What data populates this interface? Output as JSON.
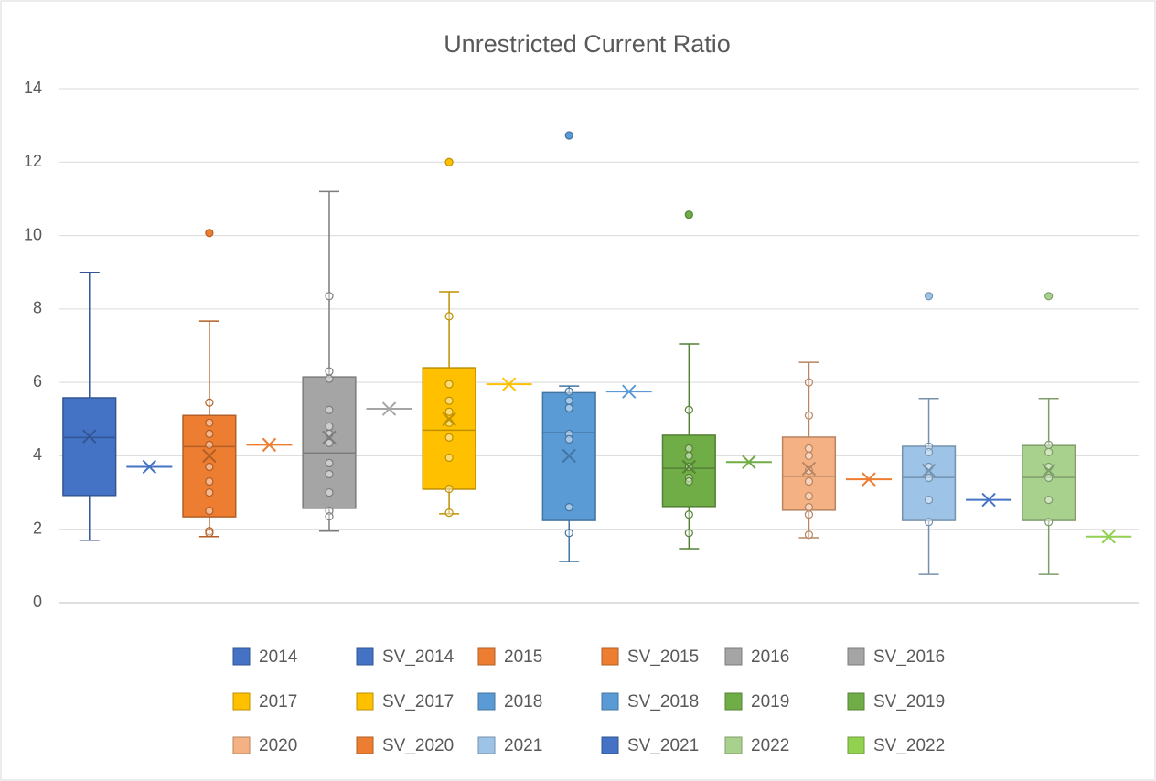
{
  "chart_data": {
    "type": "box",
    "title": "Unrestricted Current Ratio",
    "ylim": [
      0,
      14
    ],
    "yticks": [
      0,
      2,
      4,
      6,
      8,
      10,
      12,
      14
    ],
    "grid": true,
    "legend": "bottom",
    "series": [
      {
        "name": "2014",
        "color": "#4472c4",
        "min": 1.7,
        "q1": 2.92,
        "median": 4.5,
        "q3": 5.58,
        "max": 9.0,
        "mean": 4.53,
        "points": [],
        "outliers": []
      },
      {
        "name": "SV_2014",
        "color": "#4472c4",
        "value": 3.7
      },
      {
        "name": "2015",
        "color": "#ed7d31",
        "min": 1.8,
        "q1": 2.34,
        "median": 4.25,
        "q3": 5.1,
        "max": 7.67,
        "mean": 4.0,
        "points": [
          5.45,
          4.9,
          4.6,
          4.3,
          3.7,
          3.3,
          3.0,
          2.5,
          1.95,
          1.9
        ],
        "outliers": [
          10.07
        ]
      },
      {
        "name": "SV_2015",
        "color": "#ed7d31",
        "value": 4.3
      },
      {
        "name": "2016",
        "color": "#a5a5a5",
        "min": 1.95,
        "q1": 2.57,
        "median": 4.08,
        "q3": 6.15,
        "max": 11.2,
        "mean": 4.5,
        "points": [
          8.35,
          6.3,
          6.1,
          5.25,
          4.8,
          4.6,
          4.35,
          3.8,
          3.5,
          3.0,
          2.5,
          2.35
        ],
        "outliers": []
      },
      {
        "name": "SV_2016",
        "color": "#a5a5a5",
        "value": 5.28
      },
      {
        "name": "2017",
        "color": "#ffc000",
        "min": 2.42,
        "q1": 3.09,
        "median": 4.7,
        "q3": 6.4,
        "max": 8.47,
        "mean": 5.0,
        "points": [
          7.8,
          5.95,
          5.5,
          5.2,
          4.9,
          4.5,
          3.95,
          3.1,
          2.45
        ],
        "outliers": [
          12.0
        ]
      },
      {
        "name": "SV_2017",
        "color": "#ffc000",
        "value": 5.95
      },
      {
        "name": "2018",
        "color": "#5b9bd5",
        "min": 1.12,
        "q1": 2.24,
        "median": 4.63,
        "q3": 5.72,
        "max": 5.9,
        "mean": 4.0,
        "points": [
          5.75,
          5.5,
          5.3,
          4.6,
          4.45,
          2.6,
          1.9
        ],
        "outliers": [
          12.73
        ]
      },
      {
        "name": "SV_2018",
        "color": "#5b9bd5",
        "value": 5.75
      },
      {
        "name": "2019",
        "color": "#70ad47",
        "min": 1.47,
        "q1": 2.62,
        "median": 3.66,
        "q3": 4.56,
        "max": 7.05,
        "mean": 3.7,
        "points": [
          5.25,
          4.2,
          4.0,
          3.7,
          3.4,
          3.3,
          2.4,
          1.9
        ],
        "outliers": [
          10.57
        ]
      },
      {
        "name": "SV_2019",
        "color": "#70ad47",
        "value": 3.83
      },
      {
        "name": "2020",
        "color": "#f4b183",
        "min": 1.77,
        "q1": 2.52,
        "median": 3.44,
        "q3": 4.51,
        "max": 6.55,
        "mean": 3.65,
        "points": [
          6.0,
          5.1,
          4.2,
          4.0,
          3.6,
          3.3,
          2.9,
          2.6,
          2.4,
          1.85
        ],
        "outliers": []
      },
      {
        "name": "SV_2020",
        "color": "#ed7d31",
        "value": 3.36
      },
      {
        "name": "2021",
        "color": "#9dc3e6",
        "min": 0.77,
        "q1": 2.24,
        "median": 3.41,
        "q3": 4.26,
        "max": 5.56,
        "mean": 3.6,
        "points": [
          4.25,
          4.1,
          3.7,
          3.4,
          2.8,
          2.2
        ],
        "outliers": [
          8.35
        ]
      },
      {
        "name": "SV_2021",
        "color": "#4472c4",
        "value": 2.8
      },
      {
        "name": "2022",
        "color": "#a9d18e",
        "min": 0.77,
        "q1": 2.24,
        "median": 3.41,
        "q3": 4.28,
        "max": 5.56,
        "mean": 3.6,
        "points": [
          4.3,
          4.1,
          3.7,
          3.4,
          2.8,
          2.2
        ],
        "outliers": [
          8.35
        ]
      },
      {
        "name": "SV_2022",
        "color": "#92d050",
        "value": 1.8
      }
    ]
  }
}
